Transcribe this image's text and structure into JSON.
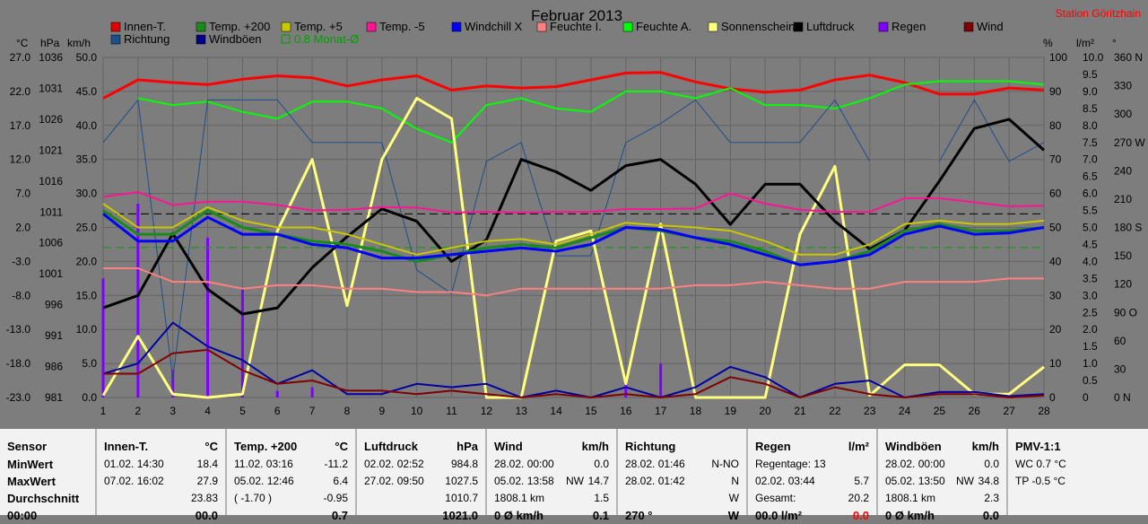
{
  "title": "Februar 2013",
  "station": "Station Göritzhain",
  "axis_units": {
    "celsius": "°C",
    "hpa": "hPa",
    "kmh": "km/h",
    "percent": "%",
    "lm2": "l/m²",
    "deg": "°"
  },
  "legend": [
    {
      "label": "Innen-T.",
      "color": "#e00000"
    },
    {
      "label": "Temp. +200",
      "color": "#1a8a1a"
    },
    {
      "label": "Temp. +5",
      "color": "#c8c800"
    },
    {
      "label": "Temp. -5",
      "color": "#ff1493"
    },
    {
      "label": "Windchill X",
      "color": "#0000ff"
    },
    {
      "label": "Feuchte I.",
      "color": "#ff8080"
    },
    {
      "label": "Feuchte A.",
      "color": "#00ff00"
    },
    {
      "label": "Sonnenschein",
      "color": "#ffff80"
    },
    {
      "label": "Luftdruck",
      "color": "#000000"
    },
    {
      "label": "Regen",
      "color": "#8000ff"
    },
    {
      "label": "Wind",
      "color": "#800000"
    },
    {
      "label": "Richtung",
      "color": "#1f4e8a"
    },
    {
      "label": "Windböen",
      "color": "#00008b"
    },
    {
      "label": "0.8 Monat-Ø",
      "color": "#00a000"
    }
  ],
  "chart_data": {
    "type": "line",
    "title": "Februar 2013",
    "x": [
      1,
      2,
      3,
      4,
      5,
      6,
      7,
      8,
      9,
      10,
      11,
      12,
      13,
      14,
      15,
      16,
      17,
      18,
      19,
      20,
      21,
      22,
      23,
      24,
      25,
      26,
      27,
      28
    ],
    "axes": {
      "temperature_c": {
        "ticks": [
          "27.0",
          "22.0",
          "17.0",
          "12.0",
          "7.0",
          "2.0",
          "-3.0",
          "-8.0",
          "-13.0",
          "-18.0",
          "-23.0"
        ],
        "range": [
          -23,
          27
        ]
      },
      "pressure_hpa": {
        "ticks": [
          "1036",
          "1031",
          "1026",
          "1021",
          "1016",
          "1011",
          "1006",
          "1001",
          "996",
          "991",
          "986",
          "981"
        ],
        "range": [
          981,
          1036
        ]
      },
      "speed_kmh": {
        "ticks": [
          "50.0",
          "45.0",
          "40.0",
          "35.0",
          "30.0",
          "25.0",
          "20.0",
          "15.0",
          "10.0",
          "5.0",
          "0.0"
        ],
        "range": [
          0,
          50
        ]
      },
      "humidity_pct": {
        "ticks": [
          "100",
          "90",
          "80",
          "70",
          "60",
          "50",
          "40",
          "30",
          "20",
          "10",
          "0"
        ],
        "range": [
          0,
          100
        ]
      },
      "rain_lm2": {
        "ticks": [
          "10.0",
          "9.5",
          "9.0",
          "8.5",
          "8.0",
          "7.5",
          "7.0",
          "6.5",
          "6.0",
          "5.5",
          "5.0",
          "4.5",
          "4.0",
          "3.5",
          "3.0",
          "2.5",
          "2.0",
          "1.5",
          "1.0",
          "0.5",
          "0"
        ],
        "range": [
          0,
          10
        ]
      },
      "direction_deg": {
        "ticks": [
          "360 N",
          "330",
          "300",
          "270 W",
          "240",
          "210",
          "180 S",
          "150",
          "120",
          "90 O",
          "60",
          "30",
          "0 N"
        ],
        "range": [
          0,
          360
        ]
      }
    },
    "series": [
      {
        "name": "Innen-T.",
        "axis": "temperature_c",
        "color": "#ff0000",
        "width": 3,
        "values": [
          21.0,
          23.7,
          23.3,
          23.0,
          23.8,
          24.3,
          24.0,
          22.8,
          23.7,
          24.3,
          22.2,
          22.8,
          22.5,
          22.7,
          23.7,
          24.7,
          24.8,
          23.4,
          22.4,
          21.9,
          22.2,
          23.7,
          24.4,
          23.3,
          21.6,
          21.6,
          22.5,
          22.2
        ]
      },
      {
        "name": "Feuchte A.",
        "axis": "humidity_pct",
        "color": "#00ff00",
        "width": 2,
        "values": [
          null,
          88,
          86,
          87,
          84,
          82,
          87,
          87,
          85,
          79,
          75,
          86,
          88,
          85,
          84,
          90,
          90,
          88,
          91,
          86,
          86,
          85,
          88,
          92,
          93,
          93,
          93,
          92
        ]
      },
      {
        "name": "Richtung",
        "axis": "direction_deg",
        "color": "#1f4e8a",
        "width": 1,
        "values": [
          270,
          315,
          20,
          315,
          315,
          315,
          270,
          270,
          270,
          135,
          110,
          250,
          270,
          150,
          150,
          270,
          290,
          315,
          270,
          270,
          270,
          315,
          250,
          null,
          250,
          315,
          250,
          270
        ]
      },
      {
        "name": "Sonnenschein",
        "axis": "speed_kmh",
        "color": "#ffff80",
        "width": 3,
        "values": [
          0.3,
          9.0,
          0.5,
          0.0,
          0.5,
          24.5,
          35.0,
          13.5,
          35.0,
          44.0,
          41.0,
          0.0,
          0.0,
          23.0,
          24.5,
          2.0,
          25.5,
          0.0,
          0.0,
          0.0,
          24.0,
          34.0,
          0.3,
          4.8,
          4.8,
          0.5,
          0.5,
          4.5
        ]
      },
      {
        "name": "Luftdruck",
        "axis": "pressure_hpa",
        "color": "#000000",
        "width": 3,
        "values": [
          995.5,
          997.5,
          1007.5,
          998.5,
          994.5,
          995.5,
          1002.0,
          1007.0,
          1011.5,
          1009.5,
          1003.0,
          1006.5,
          1019.5,
          1017.5,
          1014.5,
          1018.5,
          1019.5,
          1015.5,
          1009.0,
          1015.5,
          1015.5,
          1009.5,
          1005.0,
          1008.0,
          1016.0,
          1024.5,
          1026.0,
          1021.0
        ]
      },
      {
        "name": "Temp. -5",
        "axis": "temperature_c",
        "color": "#ff1493",
        "width": 2,
        "values": [
          6.5,
          7.2,
          5.3,
          5.8,
          5.8,
          5.3,
          4.5,
          4.6,
          5.0,
          4.9,
          4.2,
          4.3,
          4.2,
          4.3,
          4.3,
          4.7,
          4.7,
          4.8,
          7.0,
          5.5,
          4.6,
          4.3,
          4.3,
          6.3,
          6.3,
          5.7,
          5.1,
          5.2
        ]
      },
      {
        "name": "Temp. +5",
        "axis": "temperature_c",
        "color": "#c8c800",
        "width": 2,
        "values": [
          5.5,
          2.0,
          2.0,
          5.0,
          3.0,
          2.0,
          2.0,
          1.0,
          -0.5,
          -2.0,
          -1.0,
          0.0,
          0.3,
          -0.5,
          1.0,
          2.7,
          2.3,
          2.0,
          1.5,
          0.0,
          -2.0,
          -2.0,
          -0.5,
          2.5,
          3.0,
          2.5,
          2.5,
          3.0
        ]
      },
      {
        "name": "Temp. +200",
        "axis": "temperature_c",
        "color": "#1a8a1a",
        "width": 3,
        "values": [
          4.5,
          1.0,
          1.0,
          4.5,
          2.0,
          1.0,
          0.0,
          -0.5,
          -1.5,
          -3.0,
          -2.0,
          -1.0,
          -0.5,
          -1.0,
          0.5,
          2.0,
          1.5,
          0.5,
          0.0,
          -1.5,
          -3.5,
          -3.0,
          -1.5,
          1.5,
          2.5,
          1.5,
          1.5,
          2.0
        ]
      },
      {
        "name": "Windchill X",
        "axis": "temperature_c",
        "color": "#0000ff",
        "width": 3,
        "values": [
          4.0,
          0.0,
          0.0,
          3.5,
          1.0,
          1.0,
          -0.5,
          -1.0,
          -2.5,
          -2.5,
          -2.0,
          -1.5,
          -1.0,
          -1.5,
          -0.5,
          2.0,
          1.7,
          0.5,
          -0.5,
          -2.0,
          -3.5,
          -3.0,
          -2.0,
          1.0,
          2.2,
          1.0,
          1.2,
          2.0
        ]
      },
      {
        "name": "Feuchte I.",
        "axis": "humidity_pct",
        "color": "#ff8080",
        "width": 2,
        "values": [
          38,
          38,
          34,
          34,
          32,
          33,
          33,
          32,
          32,
          31,
          31,
          30,
          32,
          32,
          32,
          32,
          32,
          33,
          33,
          34,
          33,
          32,
          32,
          34,
          34,
          34,
          35,
          35
        ]
      },
      {
        "name": "Windböen",
        "axis": "speed_kmh",
        "color": "#0000a0",
        "width": 2,
        "values": [
          3.5,
          5.0,
          11.0,
          7.5,
          5.5,
          2.0,
          4.0,
          0.5,
          0.5,
          2.0,
          1.5,
          2.0,
          0.0,
          1.0,
          0.0,
          1.5,
          0.0,
          1.5,
          4.5,
          3.0,
          0.0,
          2.0,
          2.5,
          0.0,
          0.8,
          0.8,
          0.2,
          0.5
        ]
      },
      {
        "name": "Wind",
        "axis": "speed_kmh",
        "color": "#800000",
        "width": 2,
        "values": [
          3.5,
          3.5,
          6.5,
          7.0,
          4.0,
          2.0,
          2.5,
          1.0,
          1.0,
          0.5,
          1.0,
          0.5,
          0.0,
          0.5,
          0.0,
          0.5,
          0.0,
          0.5,
          3.0,
          2.0,
          0.0,
          1.5,
          0.5,
          0.0,
          0.5,
          0.5,
          0.0,
          0.3
        ]
      }
    ],
    "rain_bars": {
      "axis": "rain_lm2",
      "color": "#8000ff",
      "x": [
        1,
        2,
        3,
        4,
        5,
        6,
        7,
        12,
        16,
        17
      ],
      "values": [
        3.5,
        5.7,
        0.8,
        4.7,
        3.2,
        0.2,
        0.3,
        0.1,
        0.4,
        1.0
      ]
    },
    "reference_lines": [
      {
        "name": "Durchschnitt Luftdruck",
        "axis": "pressure_hpa",
        "value": 1010.7,
        "color": "#000000",
        "dash": true
      },
      {
        "name": "Monat-Ø Temp. +200",
        "axis": "temperature_c",
        "value": -0.95,
        "color": "#00a000",
        "dash": true
      }
    ]
  },
  "table": [
    {
      "sensor": "Sensor",
      "min_label": "MinWert",
      "max_label": "MaxWert",
      "avg_label": "Durchschnitt",
      "extra_label": "00:00"
    },
    {
      "name": "Innen-T.",
      "unit": "°C",
      "min_date": "01.02. 14:30",
      "min_val": "18.4",
      "max_date": "07.02. 16:02",
      "max_val": "27.9",
      "avg": "23.83",
      "extra": "00.0"
    },
    {
      "name": "Temp. +200",
      "unit": "°C",
      "min_date": "11.02. 03:16",
      "min_val": "-11.2",
      "max_date": "05.02. 12:46",
      "max_val": "6.4",
      "avg_note": "( -1.70 )",
      "avg": "-0.95",
      "extra": "0.7"
    },
    {
      "name": "Luftdruck",
      "unit": "hPa",
      "min_date": "02.02. 02:52",
      "min_val": "984.8",
      "max_date": "27.02. 09:50",
      "max_val": "1027.5",
      "avg": "1010.7",
      "extra": "1021.0"
    },
    {
      "name": "Wind",
      "unit": "km/h",
      "min_date": "28.02. 00:00",
      "min_val": "0.0",
      "max_date": "05.02. 13:58",
      "max_dir": "NW",
      "max_val": "14.7",
      "avg_note": "1808.1 km",
      "avg": "1.5",
      "extra_note": "0 Ø km/h",
      "extra": "0.1"
    },
    {
      "name": "Richtung",
      "unit": "",
      "min_date": "28.02. 01:46",
      "min_val": "N-NO",
      "max_date": "28.02. 01:42",
      "max_val": "N",
      "avg": "W",
      "extra_note": "270 °",
      "extra": "W"
    },
    {
      "name": "Regen",
      "unit": "l/m²",
      "min_date": "Regentage: 13",
      "min_val": "",
      "max_date": "02.02. 03:44",
      "max_val": "5.7",
      "avg_note": "Gesamt:",
      "avg": "20.2",
      "extra_note": "00.0 l/m²",
      "extra": "0.0"
    },
    {
      "name": "Windböen",
      "unit": "km/h",
      "min_date": "28.02. 00:00",
      "min_val": "0.0",
      "max_date": "05.02. 13:50",
      "max_dir": "NW",
      "max_val": "34.8",
      "avg_note": "1808.1 km",
      "avg": "2.3",
      "extra_note": "0 Ø km/h",
      "extra": "0.0"
    },
    {
      "name": "PMV-1:1",
      "unit": "",
      "wc": "WC 0.7 °C",
      "tp": "TP -0.5 °C"
    }
  ]
}
